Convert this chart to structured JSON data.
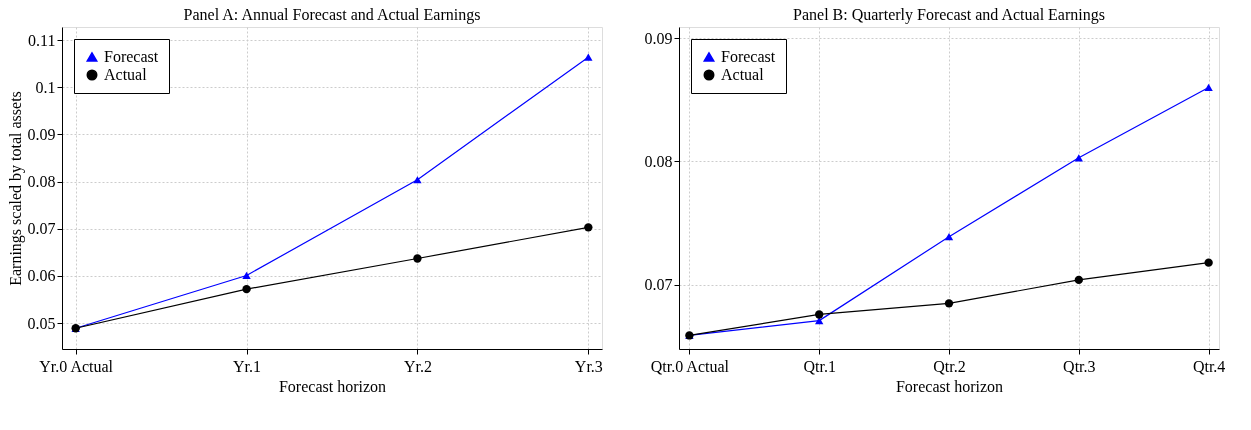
{
  "chart_data": [
    {
      "type": "line",
      "title": "Panel A: Annual Forecast and Actual Earnings",
      "xlabel": "Forecast horizon",
      "ylabel": "Earnings scaled by total assets",
      "categories": [
        "Yr.0 Actual",
        "Yr.1",
        "Yr.2",
        "Yr.3"
      ],
      "series": [
        {
          "name": "Forecast",
          "color": "#0000ff",
          "marker": "triangle",
          "values": [
            0.0489,
            0.0601,
            0.0804,
            0.1064
          ]
        },
        {
          "name": "Actual",
          "color": "#000000",
          "marker": "circle",
          "values": [
            0.0489,
            0.0572,
            0.0637,
            0.0703
          ]
        }
      ],
      "ylim": [
        0.0445,
        0.1128
      ],
      "yticks": [
        0.05,
        0.06,
        0.07,
        0.08,
        0.09,
        0.1,
        0.11
      ],
      "grid": true,
      "legend": "top left",
      "line_style": "solid"
    },
    {
      "type": "line",
      "title": "Panel B: Quarterly Forecast and Actual Earnings",
      "xlabel": "Forecast horizon",
      "categories": [
        "Qtr.0 Actual",
        "Qtr.1",
        "Qtr.2",
        "Qtr.3",
        "Qtr.4"
      ],
      "series": [
        {
          "name": "Forecast",
          "color": "#0000ff",
          "marker": "triangle",
          "values": [
            0.0659,
            0.0671,
            0.0739,
            0.0803,
            0.086
          ]
        },
        {
          "name": "Actual",
          "color": "#000000",
          "marker": "circle",
          "values": [
            0.0659,
            0.0676,
            0.0685,
            0.0704,
            0.0718
          ]
        }
      ],
      "ylim": [
        0.0648,
        0.0909
      ],
      "yticks": [
        0.07,
        0.08,
        0.09
      ],
      "grid": true,
      "legend": "top left",
      "line_style": "solid"
    }
  ]
}
